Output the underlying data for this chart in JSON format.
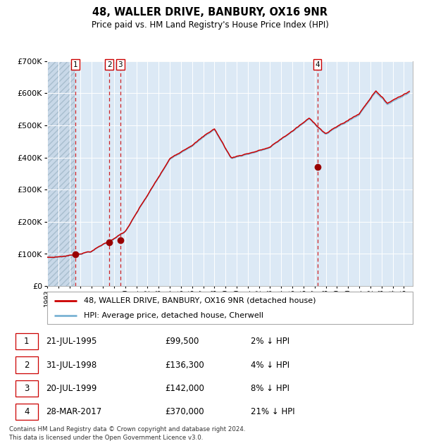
{
  "title": "48, WALLER DRIVE, BANBURY, OX16 9NR",
  "subtitle": "Price paid vs. HM Land Registry's House Price Index (HPI)",
  "purchases": [
    {
      "label": "1",
      "price": 99500,
      "x": 1995.55
    },
    {
      "label": "2",
      "price": 136300,
      "x": 1998.58
    },
    {
      "label": "3",
      "price": 142000,
      "x": 1999.55
    },
    {
      "label": "4",
      "price": 370000,
      "x": 2017.24
    }
  ],
  "table_rows": [
    {
      "num": "1",
      "date": "21-JUL-1995",
      "price": "£99,500",
      "pct": "2% ↓ HPI"
    },
    {
      "num": "2",
      "date": "31-JUL-1998",
      "price": "£136,300",
      "pct": "4% ↓ HPI"
    },
    {
      "num": "3",
      "date": "20-JUL-1999",
      "price": "£142,000",
      "pct": "8% ↓ HPI"
    },
    {
      "num": "4",
      "date": "28-MAR-2017",
      "price": "£370,000",
      "pct": "21% ↓ HPI"
    }
  ],
  "legend_line1": "48, WALLER DRIVE, BANBURY, OX16 9NR (detached house)",
  "legend_line2": "HPI: Average price, detached house, Cherwell",
  "footer": "Contains HM Land Registry data © Crown copyright and database right 2024.\nThis data is licensed under the Open Government Licence v3.0.",
  "hpi_color": "#7ab3d4",
  "price_color": "#cc0000",
  "marker_color": "#990000",
  "dashed_color": "#cc0000",
  "background_color": "#dce9f5",
  "ylim": [
    0,
    700000
  ],
  "xlim_start": 1993.0,
  "xlim_end": 2025.8
}
